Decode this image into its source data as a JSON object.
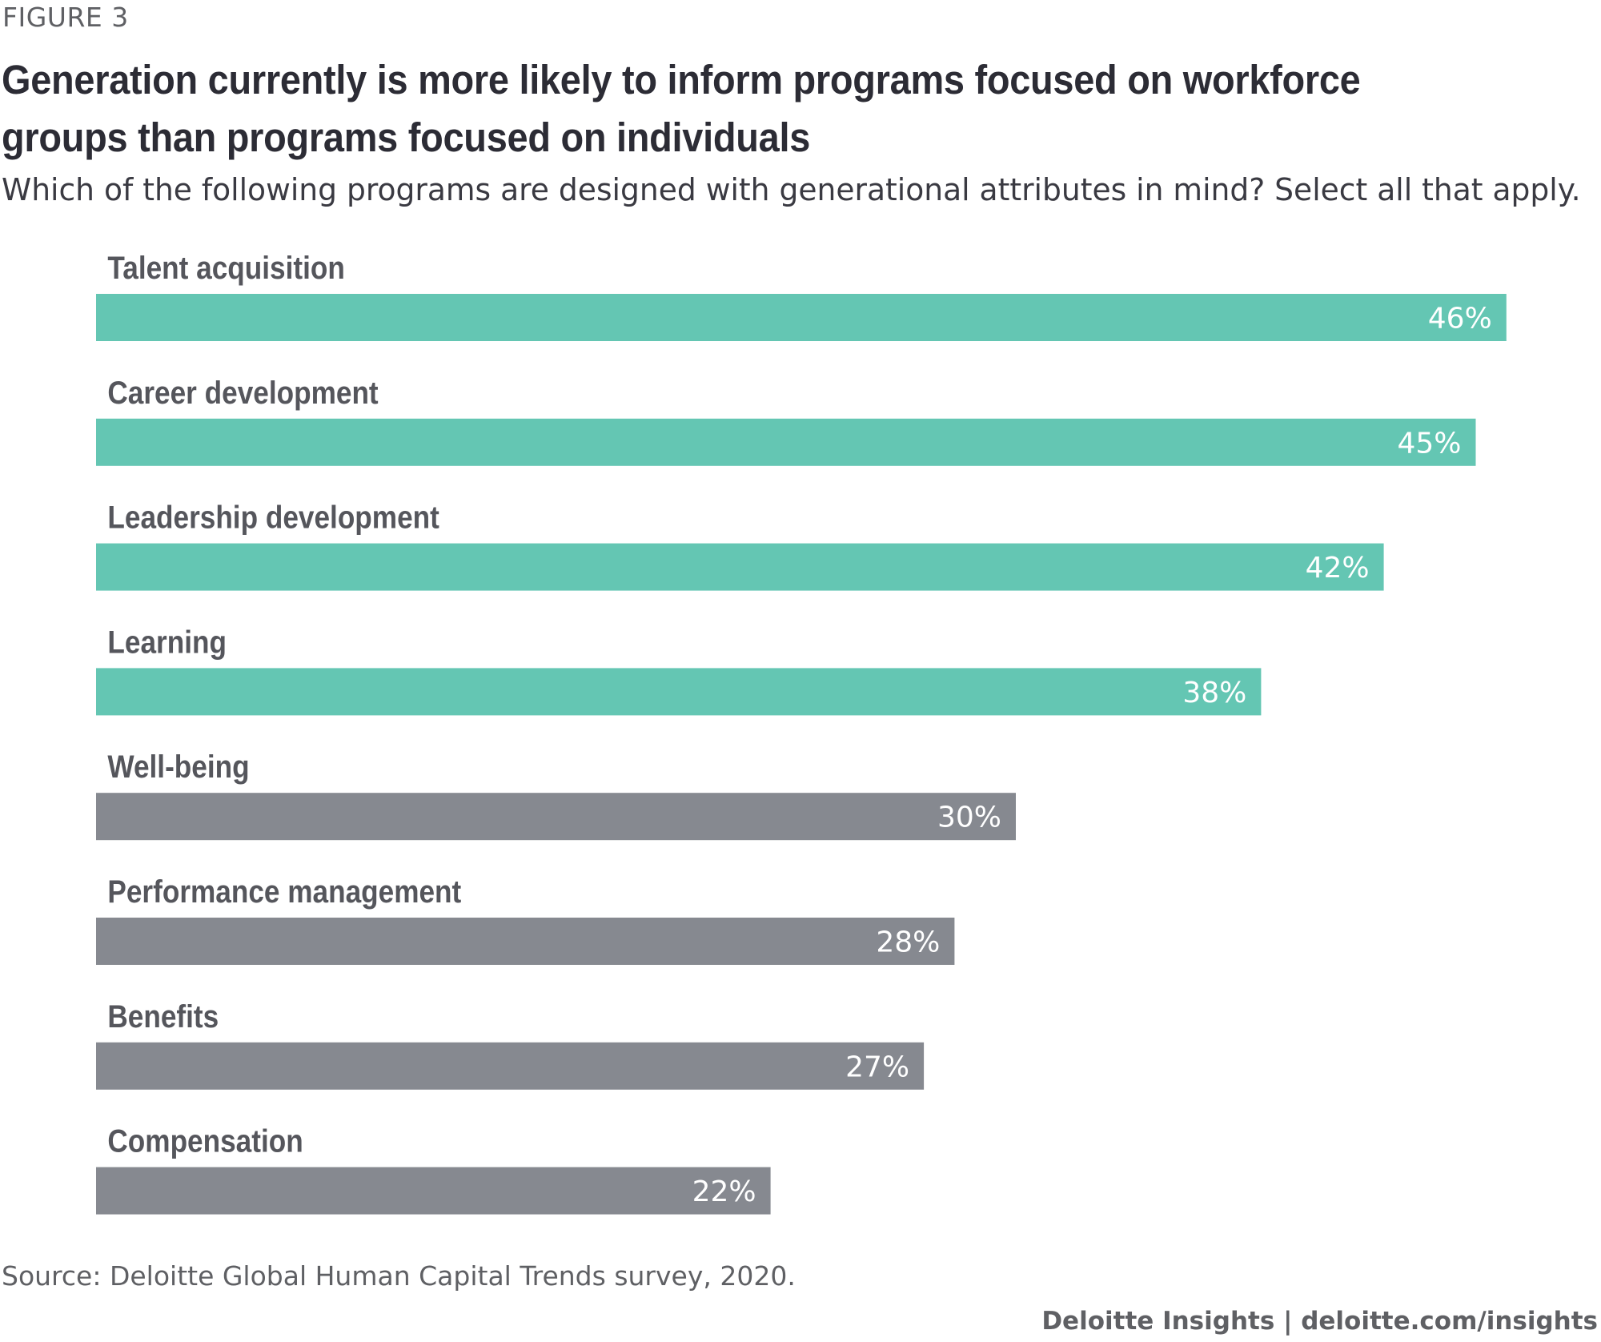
{
  "figure_label": "FIGURE 3",
  "footer": {
    "source": "Source: Deloitte Global Human Capital Trends survey, 2020.",
    "brand": "Deloitte Insights | deloitte.com/insights"
  },
  "colors": {
    "workforce_groups": "#64c6b3",
    "individuals": "#868990"
  },
  "chart_data": {
    "type": "bar",
    "orientation": "horizontal",
    "title": "Generation currently is more likely to inform programs focused on workforce groups than programs focused on individuals",
    "subtitle": "Which of the following programs are designed with generational attributes in mind? Select all that apply.",
    "xlabel": "",
    "ylabel": "",
    "xlim": [
      0,
      52
    ],
    "grid": false,
    "legend": "none",
    "categories": [
      "Talent acquisition",
      "Career development",
      "Leadership development",
      "Learning",
      "Well-being",
      "Performance management",
      "Benefits",
      "Compensation"
    ],
    "values": [
      46,
      45,
      42,
      38,
      30,
      28,
      27,
      22
    ],
    "value_labels": [
      "46%",
      "45%",
      "42%",
      "38%",
      "30%",
      "28%",
      "27%",
      "22%"
    ],
    "bar_groups": [
      "workforce_groups",
      "workforce_groups",
      "workforce_groups",
      "workforce_groups",
      "individuals",
      "individuals",
      "individuals",
      "individuals"
    ]
  }
}
